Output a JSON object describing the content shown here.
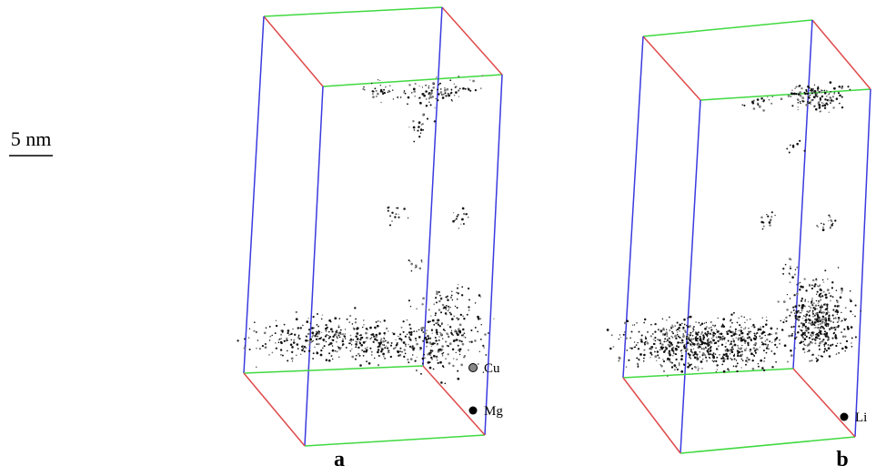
{
  "scale_bar": {
    "label": "5 nm"
  },
  "panels": [
    {
      "label": "a",
      "legend": [
        "Cu",
        "Mg"
      ]
    },
    {
      "label": "b",
      "legend": [
        "Li"
      ]
    }
  ]
}
